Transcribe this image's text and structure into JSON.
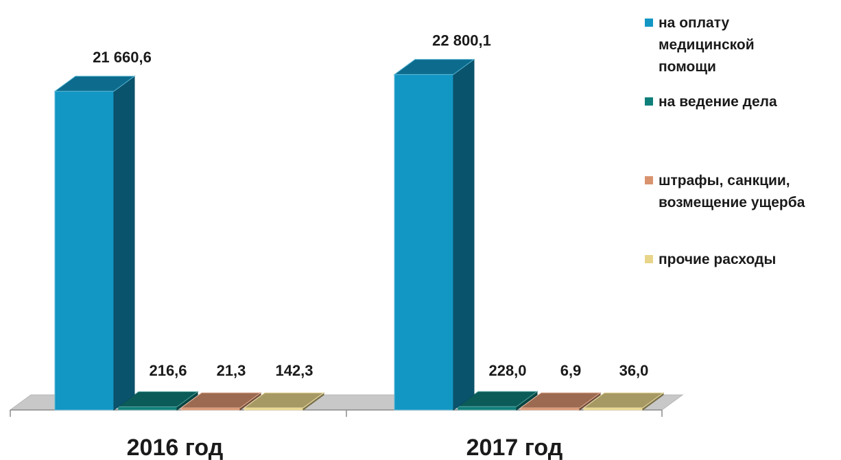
{
  "chart_data": {
    "type": "bar",
    "categories": [
      "2016 год",
      "2017 год"
    ],
    "series": [
      {
        "name": "на оплату медицинской помощи",
        "values": [
          21660.6,
          22800.1
        ],
        "labels": [
          "21 660,6",
          "22 800,1"
        ],
        "color": "#1296c4"
      },
      {
        "name": "на ведение дела",
        "values": [
          216.6,
          228.0
        ],
        "labels": [
          "216,6",
          "228,0"
        ],
        "color": "#0f7f7a"
      },
      {
        "name": "штрафы, санкции, возмещение ущерба",
        "values": [
          21.3,
          6.9
        ],
        "labels": [
          "21,3",
          "6,9"
        ],
        "color": "#d9936f"
      },
      {
        "name": "прочие расходы",
        "values": [
          142.3,
          36.0
        ],
        "labels": [
          "142,3",
          "36,0"
        ],
        "color": "#e8d58a"
      }
    ],
    "legend_lines": [
      [
        "на оплату",
        "медицинской",
        "помощи"
      ],
      [
        "на ведение дела"
      ],
      [
        "штрафы, санкции,",
        "возмещение ущерба"
      ],
      [
        "прочие расходы"
      ]
    ],
    "legend": "right",
    "grid": false,
    "ylim": [
      0,
      26000
    ]
  }
}
